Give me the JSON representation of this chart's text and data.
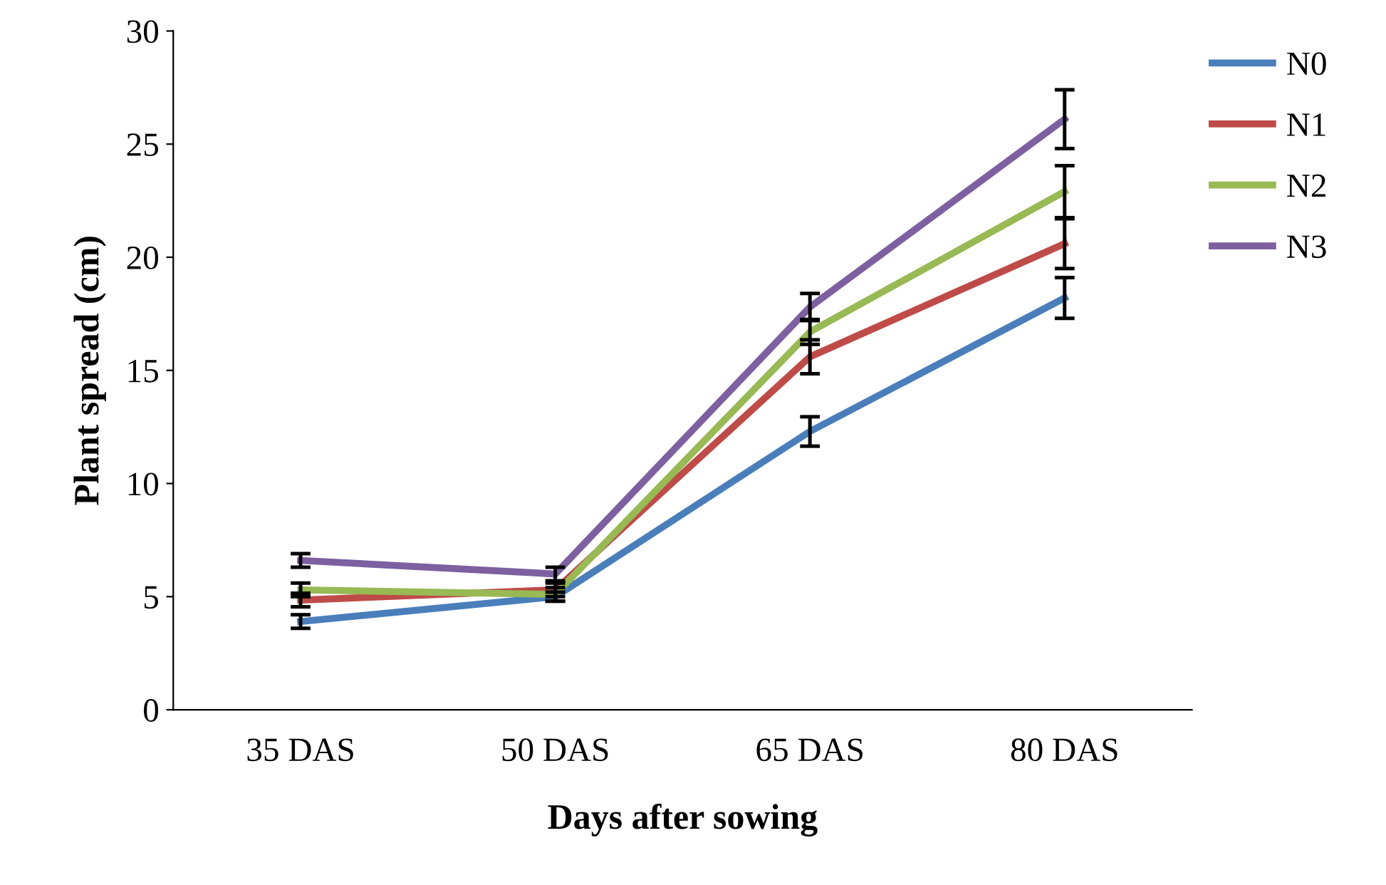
{
  "chart_data": {
    "type": "line",
    "xlabel": "Days after sowing",
    "ylabel": "Plant spread (cm)",
    "categories": [
      "35 DAS",
      "50 DAS",
      "65 DAS",
      "80 DAS"
    ],
    "series": [
      {
        "name": "N0",
        "color": "#4a7ebb",
        "values": [
          3.9,
          5.0,
          12.3,
          18.2
        ],
        "errors": [
          0.3,
          0.2,
          0.65,
          0.9
        ]
      },
      {
        "name": "N1",
        "color": "#be4b48",
        "values": [
          4.85,
          5.3,
          15.6,
          20.6
        ],
        "errors": [
          0.3,
          0.3,
          0.75,
          1.1
        ]
      },
      {
        "name": "N2",
        "color": "#98b954",
        "values": [
          5.3,
          5.1,
          16.7,
          22.9
        ],
        "errors": [
          0.3,
          0.3,
          0.55,
          1.15
        ]
      },
      {
        "name": "N3",
        "color": "#7d60a0",
        "values": [
          6.6,
          6.0,
          17.8,
          26.1
        ],
        "errors": [
          0.3,
          0.3,
          0.6,
          1.3
        ]
      }
    ],
    "ylim": [
      0,
      30
    ],
    "yticks": [
      0,
      5,
      10,
      15,
      20,
      25,
      30
    ],
    "legend": "right",
    "grid": false,
    "marker": "none",
    "line_style": "solid"
  }
}
